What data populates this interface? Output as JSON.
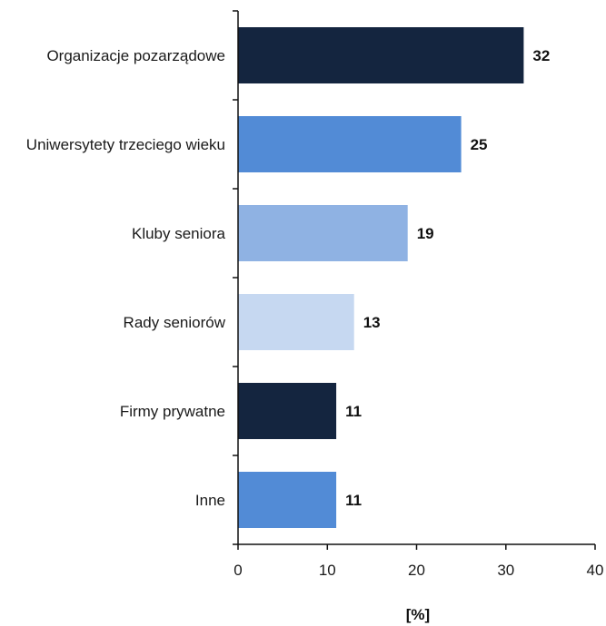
{
  "chart_data": {
    "type": "bar",
    "orientation": "horizontal",
    "categories": [
      "Organizacje pozarządowe",
      "Uniwersytety trzeciego wieku",
      "Kluby seniora",
      "Rady seniorów",
      "Firmy prywatne",
      "Inne"
    ],
    "values": [
      32,
      25,
      19,
      13,
      11,
      11
    ],
    "value_labels": [
      "32",
      "25",
      "19",
      "13",
      "11",
      "11"
    ],
    "bar_colors": [
      "#14253f",
      "#528bd6",
      "#8fb2e3",
      "#c6d8f1",
      "#14253f",
      "#528bd6"
    ],
    "xlim": [
      0,
      40
    ],
    "xticks": [
      0,
      10,
      20,
      30,
      40
    ],
    "xlabel": "[%]",
    "ylabel": "",
    "title": "",
    "grid": false,
    "legend": false
  }
}
